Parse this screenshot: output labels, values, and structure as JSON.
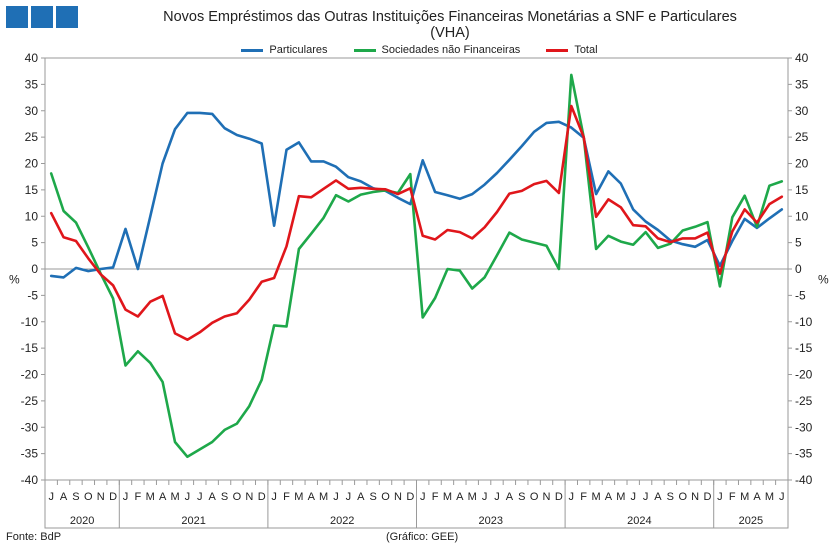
{
  "logo": {
    "squares": 3,
    "color": "#1f6fb5"
  },
  "title": "Novos Empréstimos das Outras Instituições Financeiras Monetárias a SNF e Particulares",
  "subtitle": "(VHA)",
  "footer": {
    "source": "Fonte: BdP",
    "credit": "(Gráfico: GEE)"
  },
  "chart_data": {
    "type": "line",
    "title": "Novos Empréstimos das Outras Instituições Financeiras Monetárias a SNF e Particulares",
    "subtitle": "(VHA)",
    "ylabel_left": "%",
    "ylabel_right": "%",
    "ylim": [
      -40,
      40
    ],
    "yticks": [
      -40,
      -35,
      -30,
      -25,
      -20,
      -15,
      -10,
      -5,
      0,
      5,
      10,
      15,
      20,
      25,
      30,
      35,
      40
    ],
    "grid": false,
    "legend_position": "top-center",
    "month_labels": [
      "J",
      "A",
      "S",
      "O",
      "N",
      "D",
      "J",
      "F",
      "M",
      "A",
      "M",
      "J",
      "J",
      "A",
      "S",
      "O",
      "N",
      "D",
      "J",
      "F",
      "M",
      "A",
      "M",
      "J",
      "J",
      "A",
      "S",
      "O",
      "N",
      "D",
      "J",
      "F",
      "M",
      "A",
      "M",
      "J",
      "J",
      "A",
      "S",
      "O",
      "N",
      "D",
      "J",
      "F",
      "M",
      "A",
      "M",
      "J",
      "J",
      "A",
      "S",
      "O",
      "N",
      "D",
      "J",
      "F",
      "M",
      "A",
      "M",
      "J"
    ],
    "years": [
      {
        "label": "2020",
        "months": 6
      },
      {
        "label": "2021",
        "months": 12
      },
      {
        "label": "2022",
        "months": 12
      },
      {
        "label": "2023",
        "months": 12
      },
      {
        "label": "2024",
        "months": 12
      },
      {
        "label": "2025",
        "months": 6
      }
    ],
    "series": [
      {
        "name": "Particulares",
        "color": "#1f6fb5",
        "values": [
          -1.3,
          -1.6,
          0.2,
          -0.4,
          0.0,
          0.3,
          7.6,
          0.0,
          10.0,
          20.0,
          26.5,
          29.6,
          29.6,
          29.4,
          26.7,
          25.4,
          24.7,
          23.8,
          8.2,
          22.6,
          24.0,
          20.4,
          20.4,
          19.4,
          17.4,
          16.6,
          15.3,
          14.8,
          13.5,
          12.3,
          20.6,
          14.6,
          14.0,
          13.3,
          14.2,
          16.0,
          18.2,
          20.7,
          23.3,
          26.0,
          27.7,
          27.9,
          26.8,
          24.9,
          14.2,
          18.5,
          16.2,
          11.3,
          9.0,
          7.4,
          5.4,
          4.7,
          4.2,
          5.5,
          0.6,
          5.3,
          9.5,
          7.8,
          9.6,
          11.3
        ]
      },
      {
        "name": "Sociedades não Financeiras",
        "color": "#1ea84a",
        "values": [
          18.1,
          11.0,
          8.8,
          4.1,
          -0.9,
          -5.6,
          -18.3,
          -15.6,
          -17.8,
          -21.4,
          -32.8,
          -35.6,
          -34.2,
          -32.8,
          -30.5,
          -29.3,
          -26.0,
          -21.0,
          -10.7,
          -10.9,
          3.8,
          6.7,
          9.7,
          14.0,
          12.8,
          14.1,
          14.6,
          14.9,
          14.4,
          18.0,
          -9.2,
          -5.5,
          0.0,
          -0.3,
          -3.7,
          -1.6,
          2.6,
          6.9,
          5.6,
          5.0,
          4.4,
          0.0,
          36.8,
          25.0,
          3.8,
          6.3,
          5.2,
          4.6,
          7.0,
          4.0,
          4.8,
          7.3,
          8.0,
          8.9,
          -3.3,
          9.8,
          13.9,
          8.0,
          15.8,
          16.6
        ]
      },
      {
        "name": "Total",
        "color": "#e0161b",
        "values": [
          10.6,
          6.0,
          5.3,
          2.0,
          -1.0,
          -3.1,
          -7.7,
          -9.0,
          -6.2,
          -5.1,
          -12.2,
          -13.4,
          -12.0,
          -10.2,
          -9.0,
          -8.4,
          -5.8,
          -2.4,
          -1.7,
          4.3,
          13.8,
          13.6,
          15.2,
          16.8,
          15.2,
          15.4,
          15.2,
          15.1,
          14.2,
          15.3,
          6.3,
          5.6,
          7.4,
          7.0,
          5.8,
          7.9,
          10.8,
          14.3,
          14.8,
          16.1,
          16.7,
          14.4,
          30.9,
          25.0,
          9.9,
          13.2,
          11.7,
          8.3,
          8.1,
          5.8,
          5.1,
          5.8,
          5.8,
          6.9,
          -0.9,
          7.1,
          11.3,
          8.8,
          12.3,
          13.7
        ]
      }
    ]
  }
}
